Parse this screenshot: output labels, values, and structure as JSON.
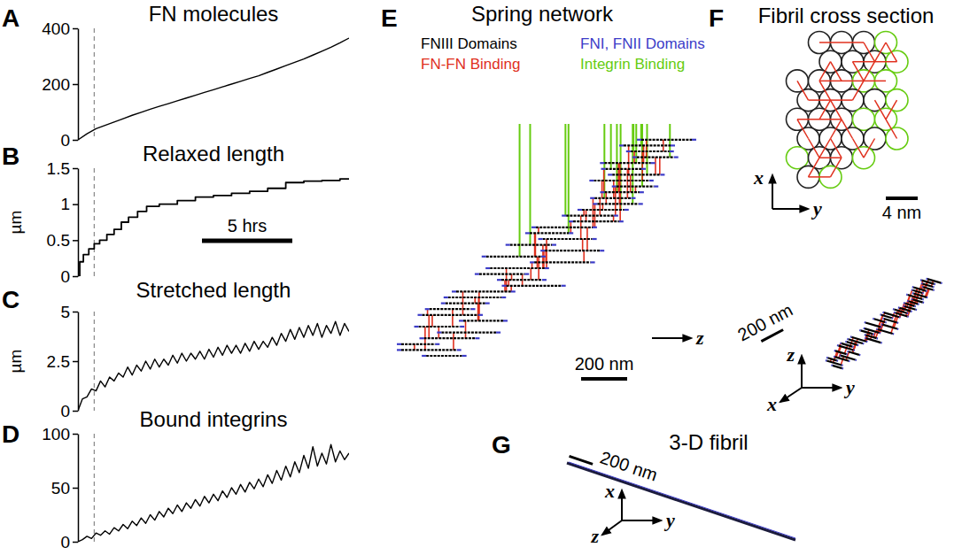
{
  "chart_data": [
    {
      "panel": "A",
      "type": "line",
      "title": "FN molecules",
      "color": "#000000",
      "tick_labels": "y",
      "x": [
        0,
        0.5,
        1,
        1.5,
        2,
        2.5,
        3,
        3.5,
        4,
        4.5,
        5,
        5.5,
        6,
        6.5,
        7,
        7.5,
        8,
        8.5,
        9,
        9.5,
        10,
        10.5,
        11,
        11.5,
        12,
        12.5,
        13,
        13.5,
        14,
        14.5,
        15
      ],
      "values": [
        0,
        22,
        40,
        52,
        64,
        76,
        88,
        99,
        110,
        120,
        130,
        140,
        150,
        160,
        170,
        180,
        190,
        200,
        210,
        220,
        230,
        242,
        254,
        266,
        278,
        290,
        304,
        318,
        332,
        348,
        365
      ],
      "xlim": [
        0,
        15
      ],
      "ylim": [
        0,
        400
      ],
      "yticks": [
        0,
        200,
        400
      ],
      "reference_x": 0.9
    },
    {
      "panel": "B",
      "type": "line",
      "title": "Relaxed length",
      "ylabel": "µm",
      "color": "#000000",
      "tick_labels": "y",
      "line_style": "step",
      "x": [
        0,
        0.1,
        0.3,
        0.6,
        0.9,
        1.2,
        1.6,
        2.0,
        2.4,
        2.8,
        3.3,
        3.8,
        4.5,
        5.5,
        6.5,
        7.5,
        8.5,
        9.5,
        10.5,
        11.5,
        12.5,
        13.5,
        14.5,
        15
      ],
      "values": [
        0,
        0.2,
        0.3,
        0.38,
        0.45,
        0.5,
        0.58,
        0.65,
        0.75,
        0.82,
        0.9,
        0.97,
        1.0,
        1.05,
        1.1,
        1.12,
        1.15,
        1.18,
        1.22,
        1.3,
        1.32,
        1.33,
        1.35,
        1.36
      ],
      "xlim": [
        0,
        15
      ],
      "ylim": [
        0,
        1.5
      ],
      "yticks": [
        0,
        0.5,
        1,
        1.5
      ],
      "reference_x": 0.9,
      "scale_bar": {
        "value": 5,
        "label": "5 hrs"
      }
    },
    {
      "panel": "C",
      "type": "line",
      "title": "Stretched length",
      "ylabel": "µm",
      "color": "#000000",
      "tick_labels": "y",
      "x": [
        0,
        0.25,
        0.5,
        0.75,
        1,
        1.25,
        1.5,
        1.75,
        2,
        2.25,
        2.5,
        2.75,
        3,
        3.25,
        3.5,
        3.75,
        4,
        4.25,
        4.5,
        4.75,
        5,
        5.25,
        5.5,
        5.75,
        6,
        6.25,
        6.5,
        6.75,
        7,
        7.25,
        7.5,
        7.75,
        8,
        8.25,
        8.5,
        8.75,
        9,
        9.25,
        9.5,
        9.75,
        10,
        10.25,
        10.5,
        10.75,
        11,
        11.25,
        11.5,
        11.75,
        12,
        12.25,
        12.5,
        12.75,
        13,
        13.25,
        13.5,
        13.75,
        14,
        14.25,
        14.5,
        14.75,
        15
      ],
      "values": [
        0,
        0.6,
        0.7,
        1.1,
        1.0,
        1.5,
        1.2,
        1.7,
        1.5,
        1.9,
        1.7,
        2.2,
        1.8,
        2.3,
        2.0,
        2.5,
        2.1,
        2.6,
        2.2,
        2.6,
        2.3,
        2.8,
        2.4,
        2.9,
        2.5,
        2.9,
        2.6,
        3.0,
        2.6,
        3.1,
        2.7,
        3.2,
        2.8,
        3.3,
        2.9,
        3.3,
        2.9,
        3.4,
        3.0,
        3.5,
        3.1,
        3.5,
        3.2,
        3.7,
        3.3,
        3.9,
        3.5,
        4.1,
        3.6,
        4.2,
        3.7,
        4.3,
        3.8,
        4.4,
        3.7,
        4.3,
        3.9,
        4.5,
        3.8,
        4.4,
        4.0
      ],
      "xlim": [
        0,
        15
      ],
      "ylim": [
        0,
        5
      ],
      "yticks": [
        0,
        2.5,
        5
      ],
      "reference_x": 0.9
    },
    {
      "panel": "D",
      "type": "line",
      "title": "Bound integrins",
      "color": "#000000",
      "tick_labels": "y",
      "x": [
        0,
        0.25,
        0.5,
        0.75,
        1,
        1.25,
        1.5,
        1.75,
        2,
        2.25,
        2.5,
        2.75,
        3,
        3.25,
        3.5,
        3.75,
        4,
        4.25,
        4.5,
        4.75,
        5,
        5.25,
        5.5,
        5.75,
        6,
        6.25,
        6.5,
        6.75,
        7,
        7.25,
        7.5,
        7.75,
        8,
        8.25,
        8.5,
        8.75,
        9,
        9.25,
        9.5,
        9.75,
        10,
        10.25,
        10.5,
        10.75,
        11,
        11.25,
        11.5,
        11.75,
        12,
        12.25,
        12.5,
        12.75,
        13,
        13.25,
        13.5,
        13.75,
        14,
        14.25,
        14.5,
        14.75,
        15
      ],
      "values": [
        0,
        2,
        5,
        3,
        8,
        6,
        10,
        7,
        13,
        10,
        16,
        12,
        19,
        15,
        22,
        17,
        25,
        20,
        28,
        23,
        31,
        26,
        34,
        28,
        36,
        31,
        39,
        33,
        42,
        36,
        44,
        38,
        47,
        41,
        50,
        44,
        53,
        46,
        55,
        49,
        58,
        51,
        62,
        54,
        66,
        57,
        70,
        60,
        74,
        64,
        80,
        68,
        88,
        70,
        82,
        72,
        90,
        74,
        84,
        76,
        82
      ],
      "xlim": [
        0,
        15
      ],
      "ylim": [
        0,
        100
      ],
      "yticks": [
        0,
        50,
        100
      ],
      "reference_x": 0.9
    }
  ],
  "diagrams": {
    "E": {
      "panel": "E",
      "title": "Spring network",
      "legend": [
        {
          "label": "FNIII Domains",
          "color": "#000000"
        },
        {
          "label": "FNI, FNII Domains",
          "color": "#3c3cc8"
        },
        {
          "label": "FN-FN Binding",
          "color": "#e0301e"
        },
        {
          "label": "Integrin Binding",
          "color": "#66cc11"
        }
      ],
      "axis": "z",
      "scale_bar": "200 nm"
    },
    "F": {
      "panel": "F",
      "title": "Fibril cross section",
      "cross_section": {
        "axes": [
          "x",
          "y"
        ],
        "scale_bar": "4 nm"
      },
      "side_view": {
        "axes": [
          "z",
          "x",
          "y"
        ],
        "scale_bar": "200 nm"
      }
    },
    "G": {
      "panel": "G",
      "title": "3-D fibril",
      "axes": [
        "z",
        "x",
        "y"
      ],
      "scale_bar": "200 nm"
    }
  }
}
